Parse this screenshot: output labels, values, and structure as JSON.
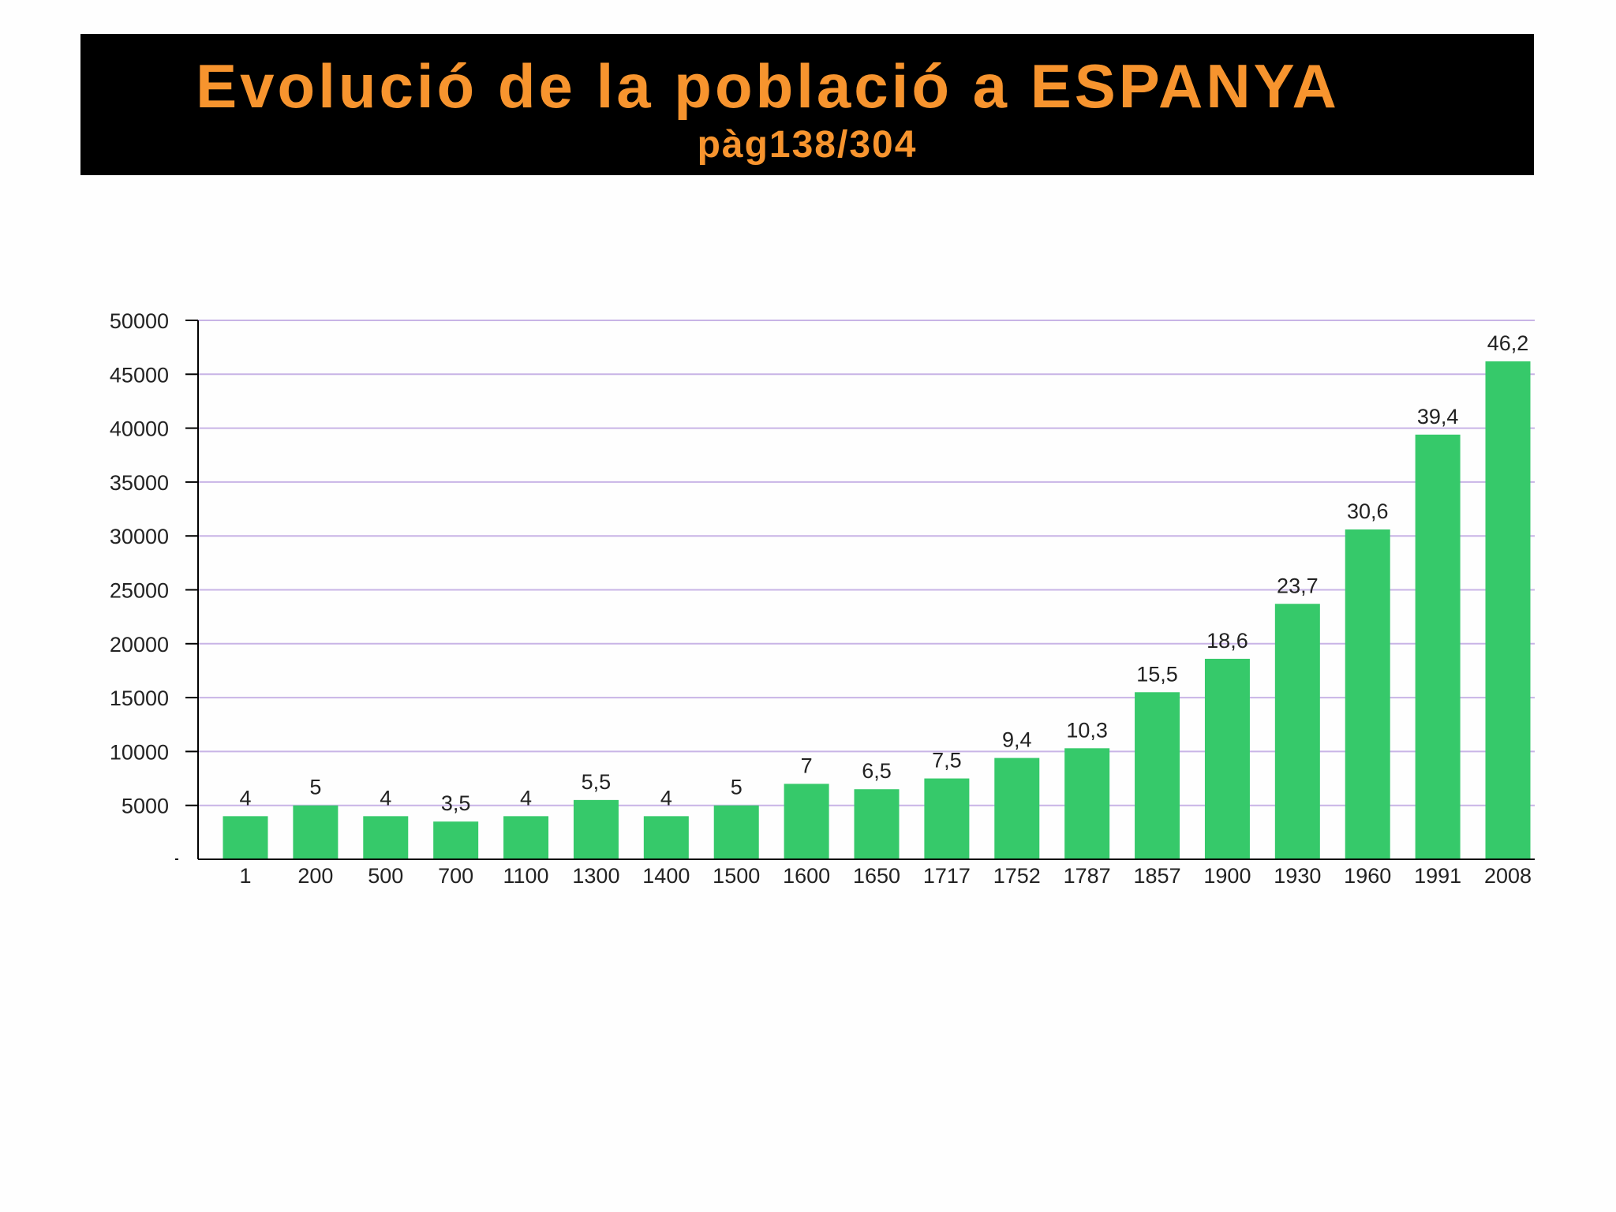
{
  "header": {
    "title": "Evolució de la població a ESPANYA",
    "subtitle": "pàg138/304"
  },
  "colors": {
    "title_bar": "#000000",
    "title_text": "#f7942e",
    "bar": "#36c96a",
    "gridline": "#c8b4e6",
    "axis": "#000000"
  },
  "chart_data": {
    "type": "bar",
    "title": "",
    "xlabel": "",
    "ylabel": "",
    "ylim": [
      0,
      50000
    ],
    "y_ticks": [
      "5000",
      "10000",
      "15000",
      "20000",
      "25000",
      "30000",
      "35000",
      "40000",
      "45000",
      "50000"
    ],
    "y_tick_values": [
      5000,
      10000,
      15000,
      20000,
      25000,
      30000,
      35000,
      40000,
      45000,
      50000
    ],
    "grid": true,
    "categories": [
      "1",
      "200",
      "500",
      "700",
      "1100",
      "1300",
      "1400",
      "1500",
      "1600",
      "1650",
      "1717",
      "1752",
      "1787",
      "1857",
      "1900",
      "1930",
      "1960",
      "1991",
      "2008"
    ],
    "values": [
      4000,
      5000,
      4000,
      3500,
      4000,
      5500,
      4000,
      5000,
      7000,
      6500,
      7500,
      9400,
      10300,
      15500,
      18600,
      23700,
      30600,
      39400,
      46200
    ],
    "data_labels": [
      "4",
      "5",
      "4",
      "3,5",
      "4",
      "5,5",
      "4",
      "5",
      "7",
      "6,5",
      "7,5",
      "9,4",
      "10,3",
      "15,5",
      "18,6",
      "23,7",
      "30,6",
      "39,4",
      "46,2"
    ]
  }
}
